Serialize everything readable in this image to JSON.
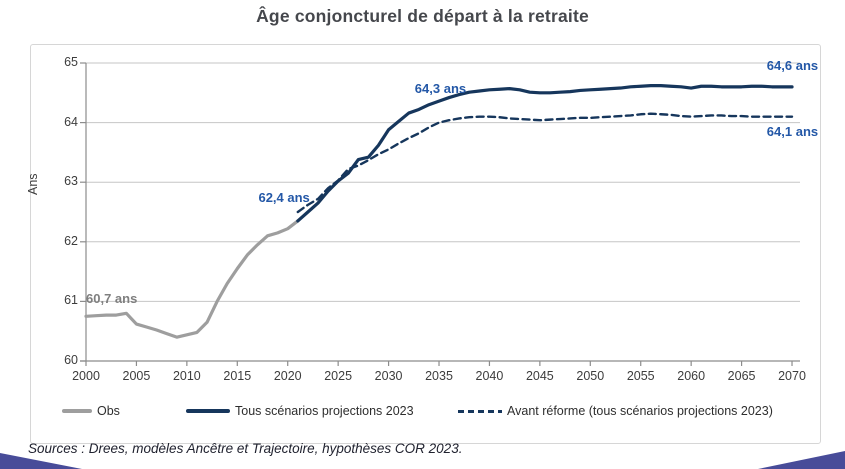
{
  "title": "Âge conjoncturel de départ à la retraite",
  "y_axis_title": "Ans",
  "source_note": "Sources : Drees, modèles Ancêtre et Trajectoire, hypothèses COR 2023.",
  "colors": {
    "line_navy": "#16365c",
    "line_gray": "#9e9e9e",
    "annotation_blue": "#2458a7",
    "annotation_gray": "#7f7f7f",
    "gridline": "#c6c6c6",
    "axis": "#8c8c8c",
    "title_text": "#45474c",
    "corner_decoration": "#484c99"
  },
  "chart_data": {
    "type": "line",
    "title": "Âge conjoncturel de départ à la retraite",
    "xlabel": "",
    "ylabel": "Ans",
    "xlim": [
      2000,
      2070
    ],
    "ylim": [
      60,
      65
    ],
    "x_ticks": [
      2000,
      2005,
      2010,
      2015,
      2020,
      2025,
      2030,
      2035,
      2040,
      2045,
      2050,
      2055,
      2060,
      2065,
      2070
    ],
    "y_ticks": [
      60,
      61,
      62,
      63,
      64,
      65
    ],
    "grid": "horizontal",
    "legend_position": "bottom",
    "series": [
      {
        "name": "Obs",
        "style": "solid",
        "color": "#9e9e9e",
        "start_year": 2000,
        "step_years": 1,
        "values": [
          60.75,
          60.76,
          60.77,
          60.77,
          60.8,
          60.62,
          60.57,
          60.52,
          60.46,
          60.4,
          60.44,
          60.48,
          60.65,
          61.0,
          61.3,
          61.55,
          61.78,
          61.95,
          62.1,
          62.15,
          62.22,
          62.35
        ]
      },
      {
        "name": "Tous scénarios projections 2023",
        "style": "solid",
        "color": "#16365c",
        "start_year": 2021,
        "step_years": 1,
        "values": [
          62.35,
          62.5,
          62.65,
          62.85,
          63.02,
          63.15,
          63.38,
          63.42,
          63.62,
          63.88,
          64.02,
          64.16,
          64.22,
          64.3,
          64.36,
          64.42,
          64.47,
          64.51,
          64.53,
          64.55,
          64.56,
          64.57,
          64.55,
          64.51,
          64.5,
          64.5,
          64.51,
          64.52,
          64.54,
          64.55,
          64.56,
          64.57,
          64.58,
          64.6,
          64.61,
          64.62,
          64.62,
          64.61,
          64.6,
          64.58,
          64.61,
          64.61,
          64.6,
          64.6,
          64.6,
          64.61,
          64.61,
          64.6,
          64.6,
          64.6
        ]
      },
      {
        "name": "Avant réforme (tous scénarios projections 2023)",
        "style": "dashed",
        "color": "#16365c",
        "start_year": 2021,
        "step_years": 1,
        "values": [
          62.5,
          62.62,
          62.72,
          62.9,
          63.03,
          63.22,
          63.28,
          63.37,
          63.47,
          63.55,
          63.65,
          63.74,
          63.82,
          63.92,
          64.0,
          64.04,
          64.07,
          64.09,
          64.1,
          64.1,
          64.09,
          64.07,
          64.06,
          64.05,
          64.04,
          64.05,
          64.06,
          64.07,
          64.08,
          64.08,
          64.09,
          64.1,
          64.11,
          64.12,
          64.14,
          64.15,
          64.14,
          64.13,
          64.11,
          64.1,
          64.11,
          64.12,
          64.12,
          64.11,
          64.11,
          64.1,
          64.1,
          64.1,
          64.1,
          64.1
        ]
      }
    ],
    "annotations": [
      {
        "text": "60,7 ans",
        "year": 2000.0,
        "value": 61.02,
        "color": "#7f7f7f"
      },
      {
        "text": "62,4 ans",
        "year": 2017.1,
        "value": 62.72,
        "color": "#2458a7"
      },
      {
        "text": "64,3 ans",
        "year": 2032.6,
        "value": 64.55,
        "color": "#2458a7"
      },
      {
        "text": "64,6 ans",
        "year": 2067.5,
        "value": 64.93,
        "color": "#2458a7"
      },
      {
        "text": "64,1 ans",
        "year": 2067.5,
        "value": 63.83,
        "color": "#2458a7"
      }
    ]
  },
  "legend": {
    "items": [
      {
        "label": "Obs"
      },
      {
        "label": "Tous scénarios projections 2023"
      },
      {
        "label": "Avant réforme (tous scénarios projections 2023)"
      }
    ]
  }
}
